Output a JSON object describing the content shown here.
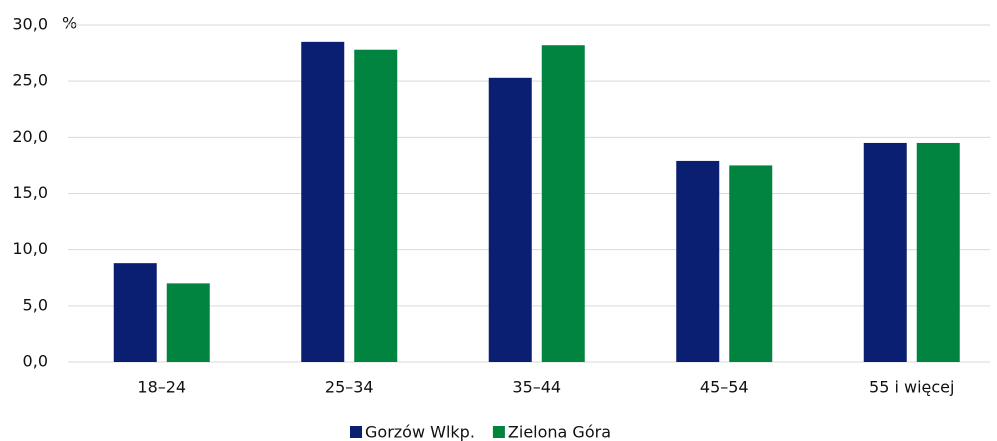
{
  "chart_data": {
    "type": "bar",
    "unit": "%",
    "categories": [
      "18–24",
      "25–34",
      "35–44",
      "45–54",
      "55 i więcej"
    ],
    "series": [
      {
        "name": "Gorzów Wlkp.",
        "color": "#0b1f72",
        "values": [
          8.8,
          28.5,
          25.3,
          17.9,
          19.5
        ]
      },
      {
        "name": "Zielona Góra",
        "color": "#00843f",
        "values": [
          7.0,
          27.8,
          28.2,
          17.5,
          19.5
        ]
      }
    ],
    "ylim": [
      0,
      30
    ],
    "yticks": [
      {
        "value": 0,
        "label": "0,0"
      },
      {
        "value": 5,
        "label": "5,0"
      },
      {
        "value": 10,
        "label": "10,0"
      },
      {
        "value": 15,
        "label": "15,0"
      },
      {
        "value": 20,
        "label": "20,0"
      },
      {
        "value": 25,
        "label": "25,0"
      },
      {
        "value": 30,
        "label": "30,0"
      }
    ],
    "grid": true
  }
}
